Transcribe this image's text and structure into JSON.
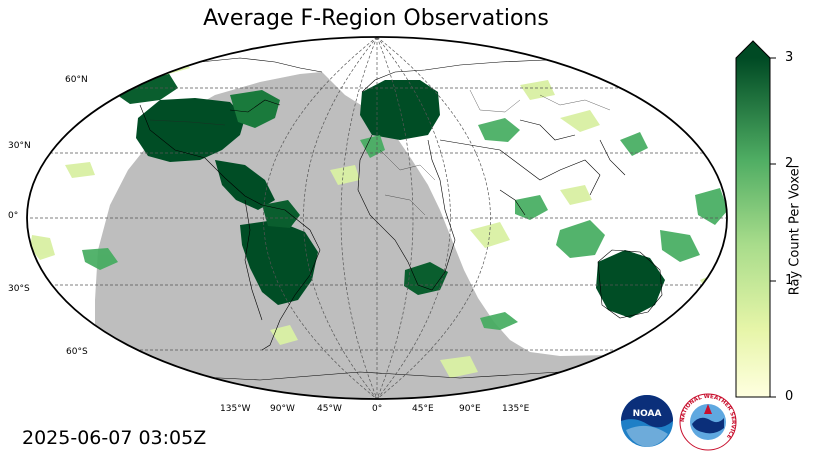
{
  "title": "Average F-Region Observations",
  "timestamp": "2025-06-07 03:05Z",
  "lat_labels": [
    "60°N",
    "30°N",
    "0°",
    "30°S",
    "60°S"
  ],
  "lon_labels": [
    "135°W",
    "90°W",
    "45°W",
    "0°",
    "45°E",
    "90°E",
    "135°E"
  ],
  "colorbar": {
    "title": "Ray Count Per Voxel",
    "ticks": [
      "0",
      "1",
      "2",
      "3"
    ],
    "min": 0,
    "max": 3,
    "extend": "max",
    "color_low": "#ffffe0",
    "color_mid": "#78c679",
    "color_high": "#004a24"
  },
  "colors": {
    "night_shading": "#bebebe",
    "data_dark": "#004d25",
    "data_mid": "#41ab5d",
    "data_light": "#d9f0a3",
    "data_pale": "#f7fcb9"
  },
  "logos": {
    "noaa_text": "NOAA",
    "nws_text": "NATIONAL WEATHER SERVICE"
  }
}
